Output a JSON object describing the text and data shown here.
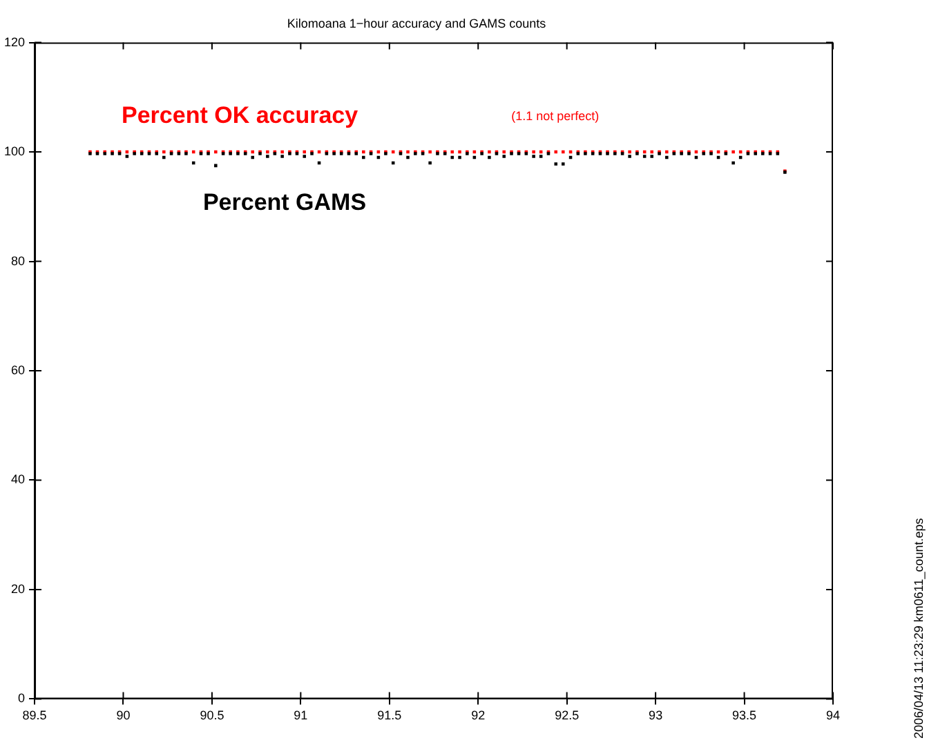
{
  "chart_data": {
    "type": "scatter",
    "title": "Kilomoana 1−hour accuracy and GAMS counts",
    "xlim": [
      89.5,
      94
    ],
    "xticks": [
      89.5,
      90,
      90.5,
      91,
      91.5,
      92,
      92.5,
      93,
      93.5,
      94
    ],
    "ylim": [
      0,
      120
    ],
    "yticks": [
      0,
      20,
      40,
      60,
      80,
      100,
      120
    ],
    "grid": false,
    "marker": "square",
    "x": [
      89.813,
      89.854,
      89.896,
      89.938,
      89.979,
      90.021,
      90.063,
      90.104,
      90.146,
      90.188,
      90.229,
      90.271,
      90.313,
      90.354,
      90.396,
      90.438,
      90.479,
      90.521,
      90.563,
      90.604,
      90.646,
      90.688,
      90.729,
      90.771,
      90.813,
      90.854,
      90.896,
      90.938,
      90.979,
      91.021,
      91.063,
      91.104,
      91.146,
      91.188,
      91.229,
      91.271,
      91.313,
      91.354,
      91.396,
      91.438,
      91.479,
      91.521,
      91.563,
      91.604,
      91.646,
      91.688,
      91.729,
      91.771,
      91.813,
      91.854,
      91.896,
      91.938,
      91.979,
      92.021,
      92.063,
      92.104,
      92.146,
      92.188,
      92.229,
      92.271,
      92.313,
      92.354,
      92.396,
      92.438,
      92.479,
      92.521,
      92.563,
      92.604,
      92.646,
      92.688,
      92.729,
      92.771,
      92.813,
      92.854,
      92.896,
      92.938,
      92.979,
      93.021,
      93.063,
      93.104,
      93.146,
      93.188,
      93.229,
      93.271,
      93.313,
      93.354,
      93.396,
      93.438,
      93.479,
      93.521,
      93.563,
      93.604,
      93.646,
      93.688,
      93.729
    ],
    "series": [
      {
        "name": "Percent GAMS",
        "color": "#000000",
        "values": [
          99.7,
          99.7,
          99.7,
          99.7,
          99.7,
          99.2,
          99.7,
          99.7,
          99.7,
          99.7,
          99,
          99.7,
          99.7,
          99.7,
          98,
          99.7,
          99.7,
          97.5,
          99.7,
          99.7,
          99.7,
          99.7,
          99,
          99.7,
          99.2,
          99.7,
          99.2,
          99.7,
          99.7,
          99.2,
          99.7,
          98,
          99.7,
          99.7,
          99.7,
          99.7,
          99.7,
          99,
          99.7,
          99,
          99.7,
          98,
          99.7,
          99,
          99.7,
          99.7,
          98,
          99.7,
          99.7,
          99,
          99,
          99.7,
          99,
          99.7,
          99,
          99.7,
          99.2,
          99.7,
          99.7,
          99.7,
          99.2,
          99.2,
          99.7,
          97.8,
          97.8,
          99,
          99.7,
          99.7,
          99.7,
          99.7,
          99.7,
          99.7,
          99.7,
          99.2,
          99.7,
          99.2,
          99.2,
          99.7,
          99,
          99.7,
          99.7,
          99.7,
          99,
          99.7,
          99.7,
          99,
          99.7,
          98,
          99,
          99.7,
          99.7,
          99.7,
          99.7,
          99.7,
          96.3
        ]
      },
      {
        "name": "Percent OK accuracy",
        "color": "#ff0000",
        "values": [
          100,
          100,
          100,
          100,
          100,
          100,
          100,
          100,
          100,
          100,
          100,
          100,
          100,
          100,
          100,
          100,
          100,
          100,
          100,
          100,
          100,
          100,
          100,
          100,
          100,
          100,
          100,
          100,
          100,
          100,
          100,
          100,
          100,
          100,
          100,
          100,
          100,
          100,
          100,
          100,
          100,
          100,
          100,
          100,
          100,
          100,
          100,
          100,
          100,
          100,
          100,
          100,
          100,
          100,
          100,
          100,
          100,
          100,
          100,
          100,
          100,
          100,
          100,
          100,
          100,
          100,
          100,
          100,
          100,
          100,
          100,
          100,
          100,
          100,
          100,
          100,
          100,
          100,
          100,
          100,
          100,
          100,
          100,
          100,
          100,
          100,
          100,
          100,
          100,
          100,
          100,
          100,
          100,
          100,
          96.5
        ]
      }
    ],
    "annotations": [
      "(1.1 not perfect)",
      "2006/04/13 11:23:29  km0611_count.eps"
    ]
  }
}
